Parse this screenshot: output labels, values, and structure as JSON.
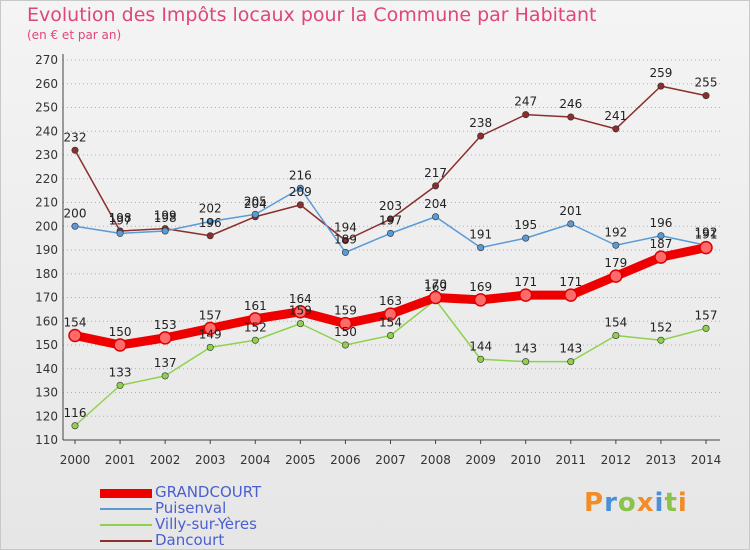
{
  "header": {
    "title": "Evolution des Impôts locaux pour la Commune par Habitant",
    "subtitle": "(en € et par an)"
  },
  "logo": {
    "text": "Proxiti"
  },
  "colors": {
    "title": "#e0457b",
    "legend_text": "#4a5fd0",
    "grid": "#b0b0b0"
  },
  "chart_data": {
    "type": "line",
    "title": "Evolution des Impôts locaux pour la Commune par Habitant",
    "subtitle": "(en € et par an)",
    "x": [
      "2000",
      "2001",
      "2002",
      "2003",
      "2004",
      "2005",
      "2006",
      "2007",
      "2008",
      "2009",
      "2010",
      "2011",
      "2012",
      "2013",
      "2014"
    ],
    "y_ticks": [
      110,
      120,
      130,
      140,
      150,
      160,
      170,
      180,
      190,
      200,
      210,
      220,
      230,
      240,
      250,
      260,
      270
    ],
    "ylim": [
      110,
      270
    ],
    "grid": "horizontal dashed",
    "legend_position": "bottom-left",
    "series": [
      {
        "name": "GRANDCOURT",
        "color": "#ee0000",
        "values": [
          154,
          150,
          153,
          157,
          161,
          164,
          159,
          163,
          170,
          169,
          171,
          171,
          179,
          187,
          191
        ]
      },
      {
        "name": "Puisenval",
        "color": "#5b9bd5",
        "values": [
          200,
          197,
          198,
          202,
          205,
          216,
          189,
          197,
          204,
          191,
          195,
          201,
          192,
          196,
          192
        ]
      },
      {
        "name": "Villy-sur-Yères",
        "color": "#8fd14f",
        "values": [
          116,
          133,
          137,
          149,
          152,
          159,
          150,
          154,
          169,
          144,
          143,
          143,
          154,
          152,
          157
        ]
      },
      {
        "name": "Dancourt",
        "color": "#8b2e2e",
        "values": [
          232,
          198,
          199,
          196,
          204,
          209,
          194,
          203,
          217,
          238,
          247,
          246,
          241,
          259,
          255
        ]
      }
    ]
  }
}
